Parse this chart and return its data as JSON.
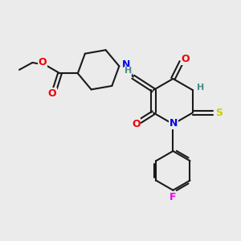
{
  "bg_color": "#ebebeb",
  "bond_color": "#1a1a1a",
  "atom_colors": {
    "N": "#0000ee",
    "O": "#ee0000",
    "S": "#cccc00",
    "F": "#ee00ee",
    "H": "#4a8a8a",
    "C": "#1a1a1a"
  },
  "font_size": 9,
  "bond_width": 1.5
}
